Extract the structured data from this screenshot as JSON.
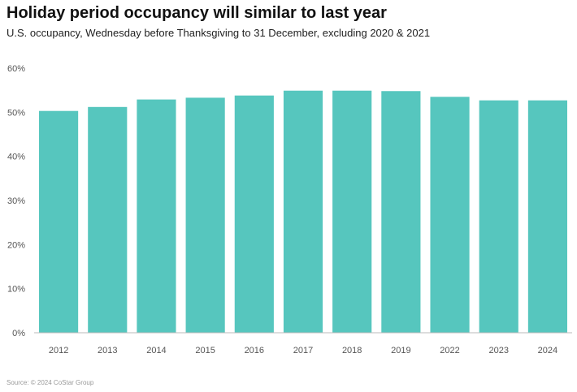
{
  "header": {
    "title": "Holiday period occupancy will similar to last year",
    "subtitle": "U.S. occupancy, Wednesday before Thanksgiving to 31 December, excluding 2020 & 2021"
  },
  "footer": {
    "source": "Source: © 2024 CoStar Group"
  },
  "colors": {
    "bar": "#56c6be",
    "tick_label": "#555555",
    "baseline": "#bbbbbb"
  },
  "chart_data": {
    "type": "bar",
    "title": "Holiday period occupancy will similar to last year",
    "subtitle": "U.S. occupancy, Wednesday before Thanksgiving to 31 December, excluding 2020 & 2021",
    "xlabel": "",
    "ylabel": "",
    "categories": [
      "2012",
      "2013",
      "2014",
      "2015",
      "2016",
      "2017",
      "2018",
      "2019",
      "2022",
      "2023",
      "2024"
    ],
    "values": [
      50.3,
      51.2,
      52.9,
      53.3,
      53.8,
      54.9,
      54.9,
      54.8,
      53.5,
      52.7,
      52.7
    ],
    "unit": "%",
    "ylim": [
      0,
      60
    ],
    "yticks": [
      0,
      10,
      20,
      30,
      40,
      50,
      60
    ],
    "ytick_labels": [
      "0%",
      "10%",
      "20%",
      "30%",
      "40%",
      "50%",
      "60%"
    ],
    "grid": false
  }
}
